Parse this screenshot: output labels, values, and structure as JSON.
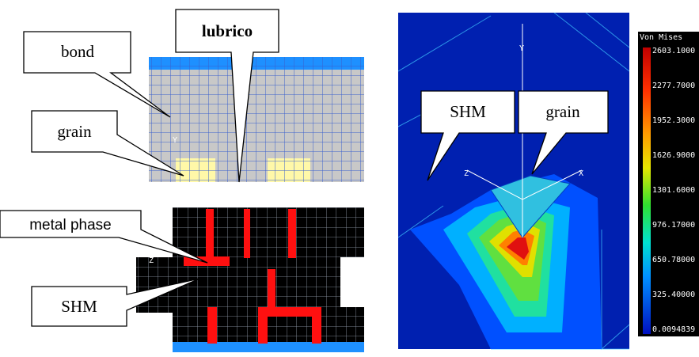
{
  "left": {
    "callouts": {
      "bond": "bond",
      "lubrico": "lubrico",
      "grain": "grain",
      "metal_phase": "metal phase",
      "shm": "SHM"
    },
    "axis_labels": {
      "y": "Y",
      "z": "Z"
    }
  },
  "right": {
    "callouts": {
      "shm": "SHM",
      "grain": "grain"
    },
    "axis_labels": {
      "y": "Y",
      "z": "Z",
      "x": "X"
    },
    "legend": {
      "title": "Von Mises",
      "labels": [
        "2603.1000",
        "2277.7000",
        "1952.3000",
        "1626.9000",
        "1301.6000",
        "976.17000",
        "650.78000",
        "325.40000",
        "0.0094839"
      ]
    }
  }
}
